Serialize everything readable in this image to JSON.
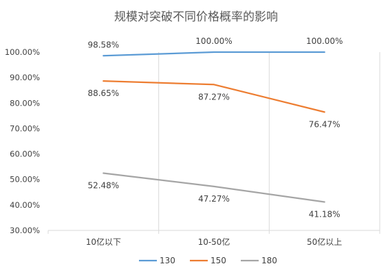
{
  "chart_data": {
    "type": "line",
    "title": "规模对突破不同价格概率的影响",
    "xlabel": "",
    "ylabel": "",
    "categories": [
      "10亿以下",
      "10-50亿",
      "50亿以上"
    ],
    "ylim": [
      0.3,
      1.0
    ],
    "yticks": [
      "30.00%",
      "40.00%",
      "50.00%",
      "60.00%",
      "70.00%",
      "80.00%",
      "90.00%",
      "100.00%"
    ],
    "grid": "vertical",
    "legend": "bottom",
    "series": [
      {
        "name": "130",
        "color": "#5B9BD5",
        "values": [
          0.9858,
          1.0,
          1.0
        ],
        "labels": [
          "98.58%",
          "100.00%",
          "100.00%"
        ]
      },
      {
        "name": "150",
        "color": "#ED7D31",
        "values": [
          0.8865,
          0.8727,
          0.7647
        ],
        "labels": [
          "88.65%",
          "87.27%",
          "76.47%"
        ]
      },
      {
        "name": "180",
        "color": "#A5A5A5",
        "values": [
          0.5248,
          0.4727,
          0.4118
        ],
        "labels": [
          "52.48%",
          "47.27%",
          "41.18%"
        ]
      }
    ]
  }
}
